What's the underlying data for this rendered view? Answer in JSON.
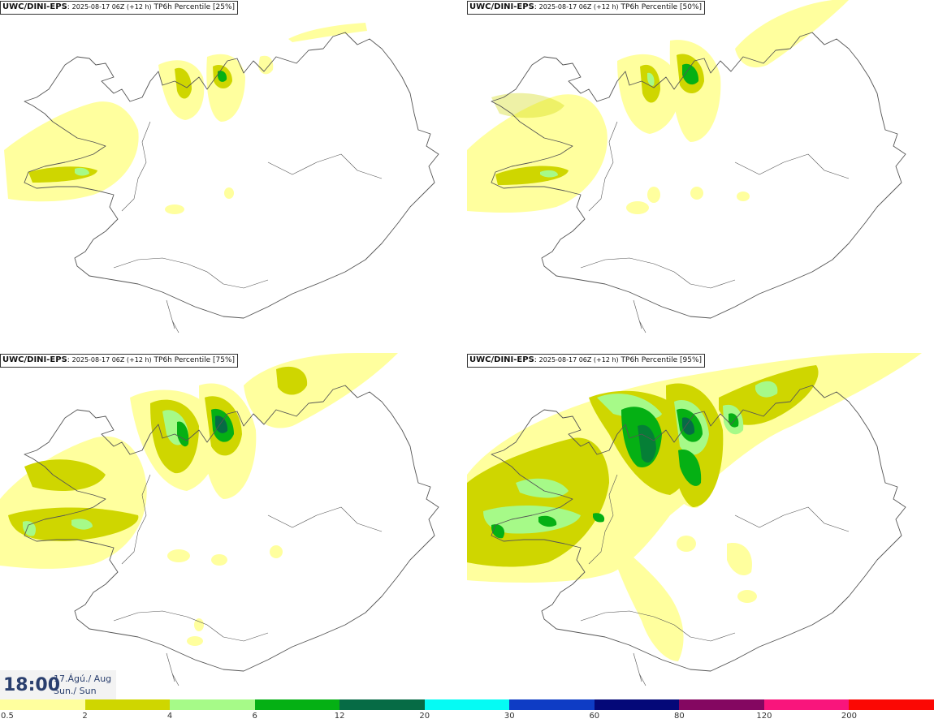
{
  "panels": [
    {
      "model": "UWC/DINI-EPS",
      "run": "2025-08-17 06Z (+12 h)",
      "field": "TP6h Percentile [25%]",
      "percentile": 25
    },
    {
      "model": "UWC/DINI-EPS",
      "run": "2025-08-17 06Z (+12 h)",
      "field": "TP6h Percentile [50%]",
      "percentile": 50
    },
    {
      "model": "UWC/DINI-EPS",
      "run": "2025-08-17 06Z (+12 h)",
      "field": "TP6h Percentile [75%]",
      "percentile": 75
    },
    {
      "model": "UWC/DINI-EPS",
      "run": "2025-08-17 06Z (+12 h)",
      "field": "TP6h Percentile [95%]",
      "percentile": 95
    }
  ],
  "valid_time": {
    "time": "18:00",
    "date_line1": "17.Ágú./ Aug",
    "date_line2": "Sun./ Sun"
  },
  "legend": {
    "labels": [
      "0.5",
      "2",
      "4",
      "6",
      "12",
      "20",
      "30",
      "60",
      "80",
      "120",
      "200"
    ],
    "colors": [
      "#ffff9e",
      "#cfd600",
      "#a6fa88",
      "#05b014",
      "#066b45",
      "#05fbf4",
      "#0e3cc5",
      "#040878",
      "#840761",
      "#f9157c",
      "#fb0804"
    ]
  },
  "map": {
    "land_color": "#ffffff",
    "outline_color": "#555555"
  }
}
